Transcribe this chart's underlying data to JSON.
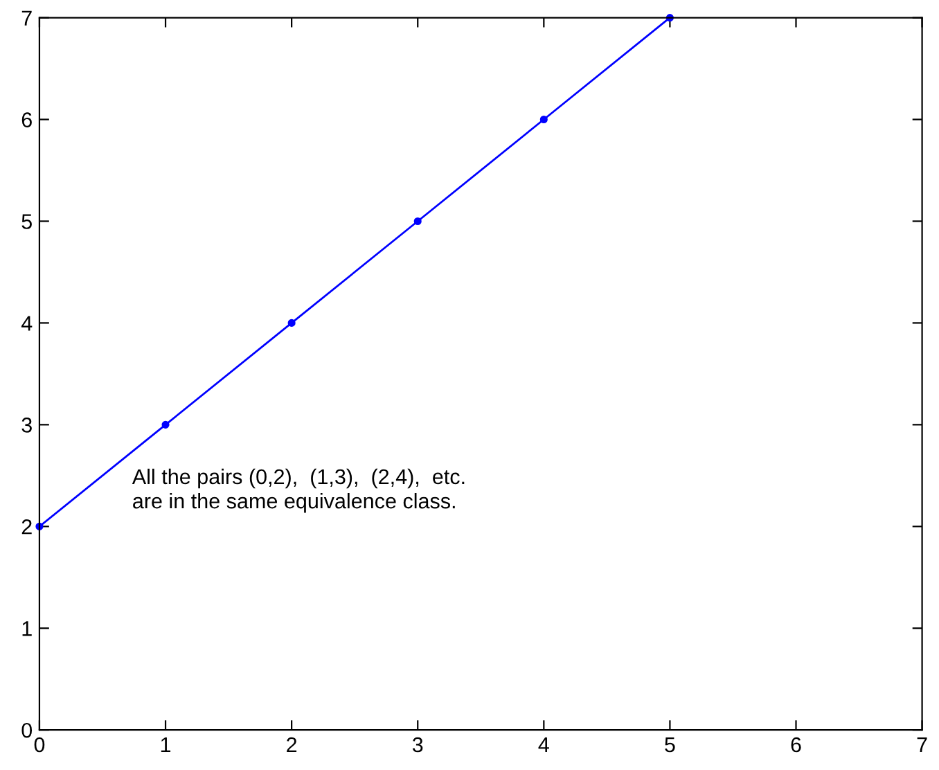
{
  "chart_data": {
    "type": "line",
    "x": [
      0,
      1,
      2,
      3,
      4,
      5
    ],
    "series": [
      {
        "color": "#0000ff",
        "values": [
          2,
          3,
          4,
          5,
          6,
          7
        ]
      }
    ],
    "marker": "circle",
    "line_style": "solid",
    "xlim": [
      0,
      7
    ],
    "ylim": [
      0,
      7
    ],
    "xticks": [
      0,
      1,
      2,
      3,
      4,
      5,
      6,
      7
    ],
    "yticks": [
      0,
      1,
      2,
      3,
      4,
      5,
      6,
      7
    ],
    "grid": false,
    "legend": false,
    "annotations": [
      "All the pairs (0,2),  (1,3),  (2,4),  etc.\nare in the same equivalence class."
    ]
  }
}
